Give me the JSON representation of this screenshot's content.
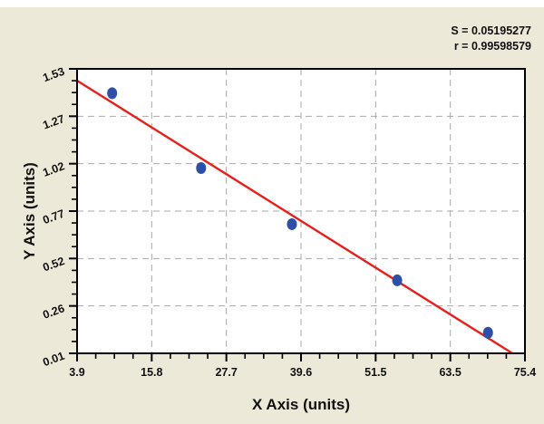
{
  "chart_data": {
    "type": "scatter",
    "title": "",
    "xlabel": "X Axis (units)",
    "ylabel": "Y Axis (units)",
    "xlim": [
      3.9,
      75.4
    ],
    "ylim": [
      0.01,
      1.53
    ],
    "x_ticks": [
      "3.9",
      "15.8",
      "27.7",
      "39.6",
      "51.5",
      "63.5",
      "75.4"
    ],
    "y_ticks": [
      "0.01",
      "0.26",
      "0.52",
      "0.77",
      "1.02",
      "1.27",
      "1.53"
    ],
    "grid": true,
    "series": [
      {
        "name": "data points",
        "type": "scatter",
        "color": "#2e4fa8",
        "points": [
          {
            "x": 9.5,
            "y": 1.4
          },
          {
            "x": 23.7,
            "y": 1.0
          },
          {
            "x": 38.2,
            "y": 0.7
          },
          {
            "x": 55.0,
            "y": 0.4
          },
          {
            "x": 69.5,
            "y": 0.12
          }
        ]
      },
      {
        "name": "fit line",
        "type": "line",
        "color": "#e8201c",
        "points": [
          {
            "x": 3.9,
            "y": 1.467
          },
          {
            "x": 73.4,
            "y": 0.01
          }
        ]
      }
    ],
    "annotations": [
      "S = 0.05195277",
      "r = 0.99598579"
    ]
  },
  "stats": {
    "s_label": "S = 0.05195277",
    "r_label": "r = 0.99598579"
  },
  "colors": {
    "background": "#ece9d8",
    "plot_bg": "#ffffff",
    "grid": "#a9a9a9",
    "fit_line": "#e8201c",
    "points": "#2e4fa8"
  }
}
